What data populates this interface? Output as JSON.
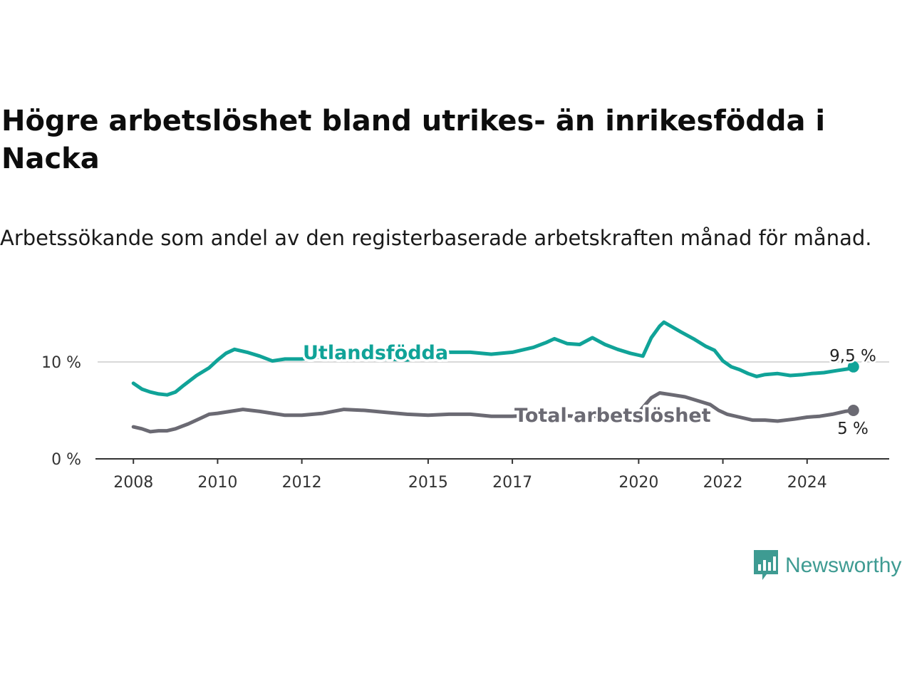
{
  "title": "Högre arbetslöshet bland utrikes- än inrikesfödda i Nacka",
  "subtitle": "Arbetssökande som andel av den registerbaserade arbetskraften månad för månad.",
  "brand": "Newsworthy",
  "colors": {
    "utlandsfodda": "#10a398",
    "total": "#6b6a73",
    "grid": "#d9d9d9",
    "axis": "#333333",
    "brand": "#3e9b92"
  },
  "chart_data": {
    "type": "line",
    "x_ticks": [
      "2008",
      "2010",
      "2012",
      "2015",
      "2017",
      "2020",
      "2022",
      "2024"
    ],
    "y_ticks": [
      "0 %",
      "10 %"
    ],
    "ylim": [
      0,
      15
    ],
    "xlim": [
      2007.15,
      2025.95
    ],
    "grid": "horizontal",
    "series": [
      {
        "name": "Utlandsfödda",
        "end_label": "9,5 %",
        "points": [
          [
            2008.0,
            7.8
          ],
          [
            2008.2,
            7.2
          ],
          [
            2008.4,
            6.9
          ],
          [
            2008.6,
            6.7
          ],
          [
            2008.8,
            6.6
          ],
          [
            2009.0,
            6.9
          ],
          [
            2009.2,
            7.6
          ],
          [
            2009.5,
            8.6
          ],
          [
            2009.8,
            9.4
          ],
          [
            2010.0,
            10.2
          ],
          [
            2010.2,
            10.9
          ],
          [
            2010.4,
            11.3
          ],
          [
            2010.7,
            11.0
          ],
          [
            2011.0,
            10.6
          ],
          [
            2011.3,
            10.1
          ],
          [
            2011.6,
            10.3
          ],
          [
            2012.0,
            10.3
          ],
          [
            2012.4,
            10.5
          ],
          [
            2013.0,
            10.6
          ],
          [
            2013.5,
            10.4
          ],
          [
            2014.0,
            10.3
          ],
          [
            2014.5,
            10.2
          ],
          [
            2015.0,
            10.7
          ],
          [
            2015.5,
            11.0
          ],
          [
            2016.0,
            11.0
          ],
          [
            2016.5,
            10.8
          ],
          [
            2017.0,
            11.0
          ],
          [
            2017.5,
            11.5
          ],
          [
            2017.8,
            12.0
          ],
          [
            2018.0,
            12.4
          ],
          [
            2018.3,
            11.9
          ],
          [
            2018.6,
            11.8
          ],
          [
            2018.9,
            12.5
          ],
          [
            2019.2,
            11.8
          ],
          [
            2019.5,
            11.3
          ],
          [
            2019.8,
            10.9
          ],
          [
            2020.0,
            10.7
          ],
          [
            2020.1,
            10.6
          ],
          [
            2020.3,
            12.5
          ],
          [
            2020.5,
            13.7
          ],
          [
            2020.6,
            14.1
          ],
          [
            2020.8,
            13.6
          ],
          [
            2021.0,
            13.1
          ],
          [
            2021.3,
            12.4
          ],
          [
            2021.6,
            11.6
          ],
          [
            2021.8,
            11.2
          ],
          [
            2022.0,
            10.1
          ],
          [
            2022.2,
            9.5
          ],
          [
            2022.4,
            9.2
          ],
          [
            2022.6,
            8.8
          ],
          [
            2022.8,
            8.5
          ],
          [
            2023.0,
            8.7
          ],
          [
            2023.3,
            8.8
          ],
          [
            2023.6,
            8.6
          ],
          [
            2023.9,
            8.7
          ],
          [
            2024.1,
            8.8
          ],
          [
            2024.4,
            8.9
          ],
          [
            2024.7,
            9.1
          ],
          [
            2025.0,
            9.3
          ],
          [
            2025.1,
            9.5
          ]
        ]
      },
      {
        "name": "Total arbetslöshet",
        "end_label": "5 %",
        "points": [
          [
            2008.0,
            3.3
          ],
          [
            2008.2,
            3.1
          ],
          [
            2008.4,
            2.8
          ],
          [
            2008.6,
            2.9
          ],
          [
            2008.8,
            2.9
          ],
          [
            2009.0,
            3.1
          ],
          [
            2009.3,
            3.6
          ],
          [
            2009.6,
            4.2
          ],
          [
            2009.8,
            4.6
          ],
          [
            2010.0,
            4.7
          ],
          [
            2010.3,
            4.9
          ],
          [
            2010.6,
            5.1
          ],
          [
            2011.0,
            4.9
          ],
          [
            2011.3,
            4.7
          ],
          [
            2011.6,
            4.5
          ],
          [
            2012.0,
            4.5
          ],
          [
            2012.5,
            4.7
          ],
          [
            2013.0,
            5.1
          ],
          [
            2013.5,
            5.0
          ],
          [
            2014.0,
            4.8
          ],
          [
            2014.5,
            4.6
          ],
          [
            2015.0,
            4.5
          ],
          [
            2015.5,
            4.6
          ],
          [
            2016.0,
            4.6
          ],
          [
            2016.5,
            4.4
          ],
          [
            2017.0,
            4.4
          ],
          [
            2017.5,
            4.5
          ],
          [
            2018.0,
            4.5
          ],
          [
            2018.5,
            4.4
          ],
          [
            2019.0,
            4.4
          ],
          [
            2019.5,
            4.6
          ],
          [
            2020.0,
            4.8
          ],
          [
            2020.3,
            6.3
          ],
          [
            2020.5,
            6.8
          ],
          [
            2020.8,
            6.6
          ],
          [
            2021.1,
            6.4
          ],
          [
            2021.4,
            6.0
          ],
          [
            2021.7,
            5.6
          ],
          [
            2021.9,
            5.0
          ],
          [
            2022.1,
            4.6
          ],
          [
            2022.4,
            4.3
          ],
          [
            2022.7,
            4.0
          ],
          [
            2023.0,
            4.0
          ],
          [
            2023.3,
            3.9
          ],
          [
            2023.7,
            4.1
          ],
          [
            2024.0,
            4.3
          ],
          [
            2024.3,
            4.4
          ],
          [
            2024.6,
            4.6
          ],
          [
            2024.9,
            4.9
          ],
          [
            2025.1,
            5.0
          ]
        ]
      }
    ]
  }
}
